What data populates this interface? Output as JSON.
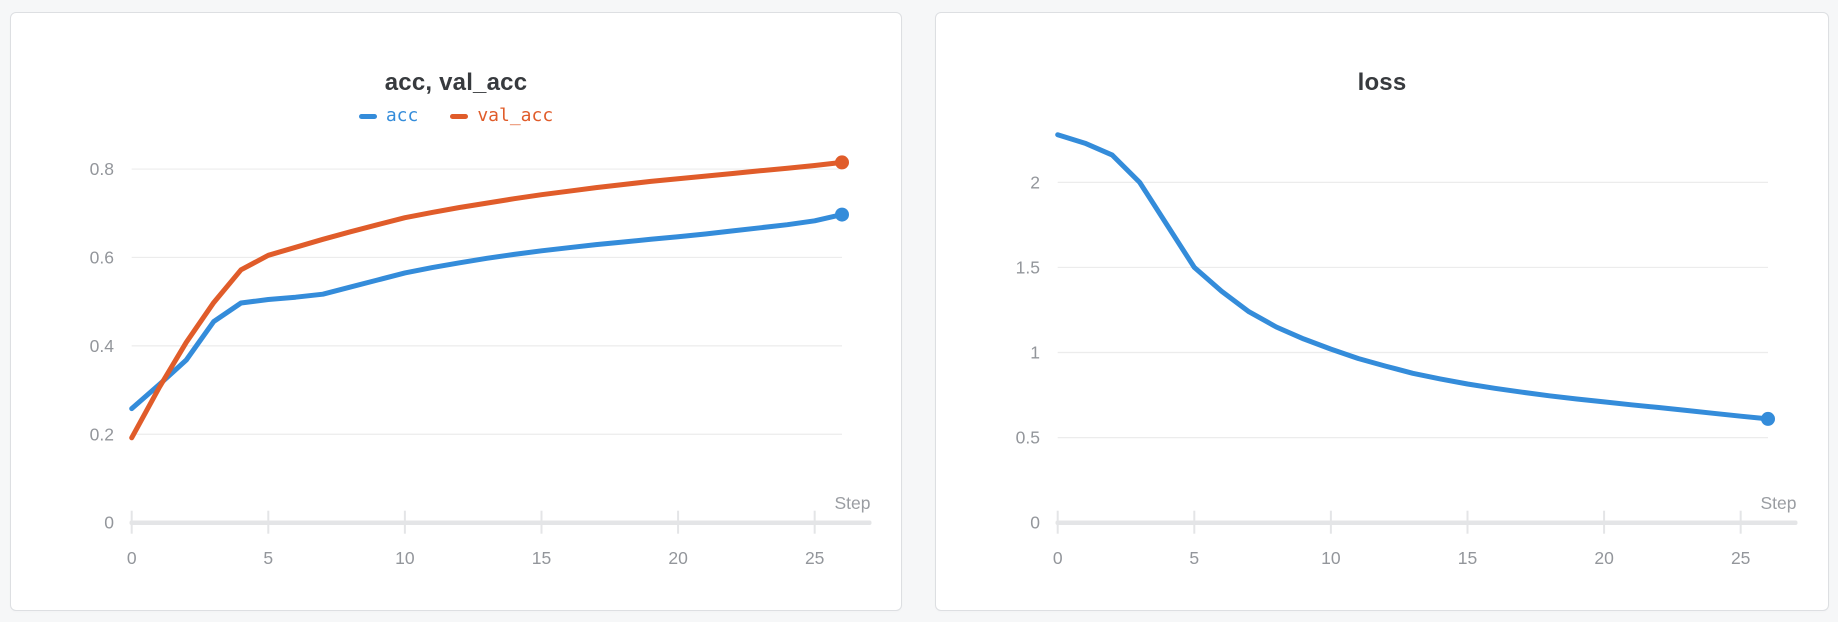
{
  "page": {
    "background": "#f6f7f8"
  },
  "style": {
    "accent_blue": "#348cda",
    "accent_orange": "#e05c2a",
    "grid_color": "#ececec",
    "axis_color": "#e4e5e7",
    "tick_label_color": "#93969b",
    "title_color": "#373a3e"
  },
  "chart_data": [
    {
      "type": "line",
      "title": "acc, val_acc",
      "xlabel": "Step",
      "grid": true,
      "legend_position": "top-center",
      "xlim": [
        0,
        26
      ],
      "ylim": [
        0,
        0.92
      ],
      "x_ticks": [
        0,
        5,
        10,
        15,
        20,
        25
      ],
      "x_tick_labels": [
        "0",
        "5",
        "10",
        "15",
        "20",
        "25"
      ],
      "y_ticks": [
        0,
        0.2,
        0.4,
        0.6,
        0.8
      ],
      "y_tick_labels": [
        "0",
        "0.2",
        "0.4",
        "0.6",
        "0.8"
      ],
      "series": [
        {
          "name": "acc",
          "color": "#348cda",
          "end_dot": true,
          "x": [
            0,
            1,
            2,
            3,
            4,
            5,
            6,
            7,
            8,
            9,
            10,
            11,
            12,
            13,
            14,
            15,
            16,
            17,
            18,
            19,
            20,
            21,
            22,
            23,
            24,
            25,
            26
          ],
          "values": [
            0.258,
            0.312,
            0.368,
            0.455,
            0.497,
            0.505,
            0.51,
            0.517,
            0.533,
            0.549,
            0.565,
            0.577,
            0.588,
            0.598,
            0.607,
            0.615,
            0.622,
            0.629,
            0.635,
            0.641,
            0.647,
            0.653,
            0.66,
            0.667,
            0.674,
            0.683,
            0.697
          ]
        },
        {
          "name": "val_acc",
          "color": "#e05c2a",
          "end_dot": true,
          "x": [
            0,
            1,
            2,
            3,
            4,
            5,
            6,
            7,
            8,
            9,
            10,
            11,
            12,
            13,
            14,
            15,
            16,
            17,
            18,
            19,
            20,
            21,
            22,
            23,
            24,
            25,
            26
          ],
          "values": [
            0.192,
            0.305,
            0.408,
            0.498,
            0.572,
            0.605,
            0.623,
            0.641,
            0.658,
            0.674,
            0.69,
            0.702,
            0.713,
            0.723,
            0.733,
            0.742,
            0.75,
            0.758,
            0.765,
            0.772,
            0.778,
            0.784,
            0.79,
            0.796,
            0.802,
            0.808,
            0.815
          ]
        }
      ]
    },
    {
      "type": "line",
      "title": "loss",
      "xlabel": "Step",
      "grid": true,
      "legend_position": "none",
      "xlim": [
        0,
        26
      ],
      "ylim": [
        0,
        2.39
      ],
      "x_ticks": [
        0,
        5,
        10,
        15,
        20,
        25
      ],
      "x_tick_labels": [
        "0",
        "5",
        "10",
        "15",
        "20",
        "25"
      ],
      "y_ticks": [
        0,
        0.5,
        1,
        1.5,
        2
      ],
      "y_tick_labels": [
        "0",
        "0.5",
        "1",
        "1.5",
        "2"
      ],
      "series": [
        {
          "name": "loss",
          "color": "#348cda",
          "end_dot": true,
          "x": [
            0,
            1,
            2,
            3,
            4,
            5,
            6,
            7,
            8,
            9,
            10,
            11,
            12,
            13,
            14,
            15,
            16,
            17,
            18,
            19,
            20,
            21,
            22,
            23,
            24,
            25,
            26
          ],
          "values": [
            2.28,
            2.23,
            2.16,
            2.0,
            1.75,
            1.5,
            1.36,
            1.24,
            1.15,
            1.08,
            1.02,
            0.965,
            0.92,
            0.878,
            0.845,
            0.815,
            0.79,
            0.767,
            0.746,
            0.727,
            0.71,
            0.693,
            0.677,
            0.66,
            0.643,
            0.626,
            0.61
          ]
        }
      ]
    }
  ]
}
